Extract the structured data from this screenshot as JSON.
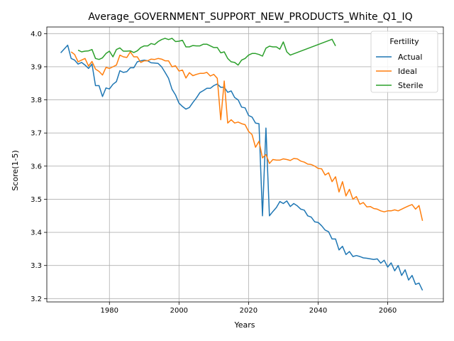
{
  "chart_data": {
    "type": "line",
    "title": "Average_GOVERNMENT_SUPPORT_NEW_PRODUCTS_White_Q1_IQ",
    "xlabel": "Years",
    "ylabel": "Score(1-5)",
    "xlim": [
      1962,
      2076
    ],
    "ylim": [
      3.19,
      4.02
    ],
    "xticks": [
      1980,
      2000,
      2020,
      2040,
      2060
    ],
    "yticks": [
      3.2,
      3.3,
      3.4,
      3.5,
      3.6,
      3.7,
      3.8,
      3.9,
      4.0
    ],
    "grid": true,
    "legend": {
      "title": "Fertility",
      "placement": "top-right"
    },
    "series": [
      {
        "name": "Actual",
        "color": "#1f77b4",
        "points": [
          [
            1966,
            3.942
          ],
          [
            1968,
            3.965
          ],
          [
            1969,
            3.925
          ],
          [
            1970,
            3.92
          ],
          [
            1971,
            3.908
          ],
          [
            1972,
            3.913
          ],
          [
            1973,
            3.905
          ],
          [
            1974,
            3.895
          ],
          [
            1975,
            3.908
          ],
          [
            1976,
            3.843
          ],
          [
            1977,
            3.843
          ],
          [
            1978,
            3.81
          ],
          [
            1979,
            3.836
          ],
          [
            1980,
            3.833
          ],
          [
            1981,
            3.847
          ],
          [
            1982,
            3.855
          ],
          [
            1983,
            3.888
          ],
          [
            1984,
            3.883
          ],
          [
            1985,
            3.885
          ],
          [
            1986,
            3.897
          ],
          [
            1987,
            3.897
          ],
          [
            1988,
            3.915
          ],
          [
            1989,
            3.918
          ],
          [
            1990,
            3.92
          ],
          [
            1991,
            3.918
          ],
          [
            1992,
            3.912
          ],
          [
            1993,
            3.911
          ],
          [
            1994,
            3.91
          ],
          [
            1995,
            3.9
          ],
          [
            1996,
            3.883
          ],
          [
            1997,
            3.865
          ],
          [
            1998,
            3.832
          ],
          [
            1999,
            3.815
          ],
          [
            2000,
            3.79
          ],
          [
            2001,
            3.78
          ],
          [
            2002,
            3.772
          ],
          [
            2003,
            3.777
          ],
          [
            2004,
            3.792
          ],
          [
            2005,
            3.806
          ],
          [
            2006,
            3.822
          ],
          [
            2007,
            3.828
          ],
          [
            2008,
            3.835
          ],
          [
            2009,
            3.835
          ],
          [
            2010,
            3.843
          ],
          [
            2011,
            3.848
          ],
          [
            2012,
            3.838
          ],
          [
            2013,
            3.838
          ],
          [
            2014,
            3.823
          ],
          [
            2015,
            3.827
          ],
          [
            2016,
            3.807
          ],
          [
            2017,
            3.8
          ],
          [
            2018,
            3.778
          ],
          [
            2019,
            3.776
          ],
          [
            2020,
            3.753
          ],
          [
            2021,
            3.748
          ],
          [
            2022,
            3.73
          ],
          [
            2023,
            3.728
          ],
          [
            2024,
            3.45
          ],
          [
            2025,
            3.715
          ],
          [
            2026,
            3.45
          ],
          [
            2027,
            3.463
          ],
          [
            2028,
            3.475
          ],
          [
            2029,
            3.493
          ],
          [
            2030,
            3.487
          ],
          [
            2031,
            3.495
          ],
          [
            2032,
            3.478
          ],
          [
            2033,
            3.487
          ],
          [
            2034,
            3.48
          ],
          [
            2035,
            3.47
          ],
          [
            2036,
            3.467
          ],
          [
            2037,
            3.45
          ],
          [
            2038,
            3.446
          ],
          [
            2039,
            3.432
          ],
          [
            2040,
            3.43
          ],
          [
            2041,
            3.42
          ],
          [
            2042,
            3.407
          ],
          [
            2043,
            3.402
          ],
          [
            2044,
            3.38
          ],
          [
            2045,
            3.38
          ],
          [
            2046,
            3.347
          ],
          [
            2047,
            3.358
          ],
          [
            2048,
            3.333
          ],
          [
            2049,
            3.342
          ],
          [
            2050,
            3.327
          ],
          [
            2051,
            3.33
          ],
          [
            2052,
            3.327
          ],
          [
            2053,
            3.323
          ],
          [
            2054,
            3.322
          ],
          [
            2055,
            3.32
          ],
          [
            2056,
            3.318
          ],
          [
            2057,
            3.32
          ],
          [
            2058,
            3.307
          ],
          [
            2059,
            3.316
          ],
          [
            2060,
            3.295
          ],
          [
            2061,
            3.308
          ],
          [
            2062,
            3.284
          ],
          [
            2063,
            3.3
          ],
          [
            2064,
            3.27
          ],
          [
            2065,
            3.287
          ],
          [
            2066,
            3.256
          ],
          [
            2067,
            3.27
          ],
          [
            2068,
            3.243
          ],
          [
            2069,
            3.247
          ],
          [
            2070,
            3.225
          ]
        ]
      },
      {
        "name": "Ideal",
        "color": "#ff7f0e",
        "points": [
          [
            1969,
            3.945
          ],
          [
            1970,
            3.937
          ],
          [
            1971,
            3.915
          ],
          [
            1972,
            3.92
          ],
          [
            1973,
            3.925
          ],
          [
            1974,
            3.902
          ],
          [
            1975,
            3.916
          ],
          [
            1976,
            3.893
          ],
          [
            1977,
            3.886
          ],
          [
            1978,
            3.875
          ],
          [
            1979,
            3.898
          ],
          [
            1980,
            3.895
          ],
          [
            1981,
            3.9
          ],
          [
            1982,
            3.905
          ],
          [
            1983,
            3.935
          ],
          [
            1984,
            3.93
          ],
          [
            1985,
            3.928
          ],
          [
            1986,
            3.945
          ],
          [
            1987,
            3.93
          ],
          [
            1988,
            3.93
          ],
          [
            1989,
            3.913
          ],
          [
            1990,
            3.918
          ],
          [
            1991,
            3.918
          ],
          [
            1992,
            3.923
          ],
          [
            1993,
            3.922
          ],
          [
            1994,
            3.925
          ],
          [
            1995,
            3.923
          ],
          [
            1996,
            3.918
          ],
          [
            1997,
            3.918
          ],
          [
            1998,
            3.9
          ],
          [
            1999,
            3.903
          ],
          [
            2000,
            3.887
          ],
          [
            2001,
            3.89
          ],
          [
            2002,
            3.866
          ],
          [
            2003,
            3.882
          ],
          [
            2004,
            3.873
          ],
          [
            2005,
            3.877
          ],
          [
            2006,
            3.88
          ],
          [
            2007,
            3.88
          ],
          [
            2008,
            3.883
          ],
          [
            2009,
            3.872
          ],
          [
            2010,
            3.877
          ],
          [
            2011,
            3.865
          ],
          [
            2012,
            3.74
          ],
          [
            2013,
            3.857
          ],
          [
            2014,
            3.73
          ],
          [
            2015,
            3.74
          ],
          [
            2016,
            3.73
          ],
          [
            2017,
            3.733
          ],
          [
            2018,
            3.728
          ],
          [
            2019,
            3.725
          ],
          [
            2020,
            3.705
          ],
          [
            2021,
            3.695
          ],
          [
            2022,
            3.657
          ],
          [
            2023,
            3.675
          ],
          [
            2024,
            3.625
          ],
          [
            2025,
            3.635
          ],
          [
            2026,
            3.608
          ],
          [
            2027,
            3.62
          ],
          [
            2028,
            3.618
          ],
          [
            2029,
            3.618
          ],
          [
            2030,
            3.622
          ],
          [
            2031,
            3.62
          ],
          [
            2032,
            3.617
          ],
          [
            2033,
            3.623
          ],
          [
            2034,
            3.622
          ],
          [
            2035,
            3.615
          ],
          [
            2036,
            3.612
          ],
          [
            2037,
            3.606
          ],
          [
            2038,
            3.605
          ],
          [
            2039,
            3.6
          ],
          [
            2040,
            3.593
          ],
          [
            2041,
            3.592
          ],
          [
            2042,
            3.573
          ],
          [
            2043,
            3.58
          ],
          [
            2044,
            3.553
          ],
          [
            2045,
            3.568
          ],
          [
            2046,
            3.522
          ],
          [
            2047,
            3.553
          ],
          [
            2048,
            3.51
          ],
          [
            2049,
            3.53
          ],
          [
            2050,
            3.5
          ],
          [
            2051,
            3.508
          ],
          [
            2052,
            3.485
          ],
          [
            2053,
            3.49
          ],
          [
            2054,
            3.477
          ],
          [
            2055,
            3.478
          ],
          [
            2056,
            3.472
          ],
          [
            2057,
            3.47
          ],
          [
            2058,
            3.465
          ],
          [
            2059,
            3.462
          ],
          [
            2060,
            3.465
          ],
          [
            2061,
            3.465
          ],
          [
            2062,
            3.468
          ],
          [
            2063,
            3.465
          ],
          [
            2064,
            3.47
          ],
          [
            2065,
            3.475
          ],
          [
            2066,
            3.48
          ],
          [
            2067,
            3.484
          ],
          [
            2068,
            3.47
          ],
          [
            2069,
            3.481
          ],
          [
            2070,
            3.435
          ]
        ]
      },
      {
        "name": "Sterile",
        "color": "#2ca02c",
        "points": [
          [
            1971,
            3.95
          ],
          [
            1972,
            3.945
          ],
          [
            1973,
            3.947
          ],
          [
            1974,
            3.948
          ],
          [
            1975,
            3.952
          ],
          [
            1976,
            3.925
          ],
          [
            1977,
            3.922
          ],
          [
            1978,
            3.927
          ],
          [
            1979,
            3.94
          ],
          [
            1980,
            3.947
          ],
          [
            1981,
            3.93
          ],
          [
            1982,
            3.952
          ],
          [
            1983,
            3.957
          ],
          [
            1984,
            3.947
          ],
          [
            1985,
            3.947
          ],
          [
            1986,
            3.948
          ],
          [
            1987,
            3.943
          ],
          [
            1988,
            3.948
          ],
          [
            1989,
            3.958
          ],
          [
            1990,
            3.963
          ],
          [
            1991,
            3.963
          ],
          [
            1992,
            3.97
          ],
          [
            1993,
            3.967
          ],
          [
            1994,
            3.976
          ],
          [
            1995,
            3.982
          ],
          [
            1996,
            3.986
          ],
          [
            1997,
            3.982
          ],
          [
            1998,
            3.986
          ],
          [
            1999,
            3.976
          ],
          [
            2000,
            3.977
          ],
          [
            2001,
            3.98
          ],
          [
            2002,
            3.96
          ],
          [
            2003,
            3.96
          ],
          [
            2004,
            3.964
          ],
          [
            2005,
            3.963
          ],
          [
            2006,
            3.963
          ],
          [
            2007,
            3.968
          ],
          [
            2008,
            3.968
          ],
          [
            2009,
            3.963
          ],
          [
            2010,
            3.958
          ],
          [
            2011,
            3.958
          ],
          [
            2012,
            3.942
          ],
          [
            2013,
            3.945
          ],
          [
            2014,
            3.925
          ],
          [
            2015,
            3.915
          ],
          [
            2016,
            3.913
          ],
          [
            2017,
            3.905
          ],
          [
            2018,
            3.92
          ],
          [
            2019,
            3.925
          ],
          [
            2020,
            3.935
          ],
          [
            2021,
            3.94
          ],
          [
            2022,
            3.94
          ],
          [
            2023,
            3.937
          ],
          [
            2024,
            3.932
          ],
          [
            2025,
            3.956
          ],
          [
            2026,
            3.962
          ],
          [
            2027,
            3.96
          ],
          [
            2028,
            3.96
          ],
          [
            2029,
            3.953
          ],
          [
            2030,
            3.975
          ],
          [
            2031,
            3.945
          ],
          [
            2032,
            3.935
          ],
          [
            2044,
            3.983
          ],
          [
            2045,
            3.963
          ]
        ]
      }
    ]
  }
}
